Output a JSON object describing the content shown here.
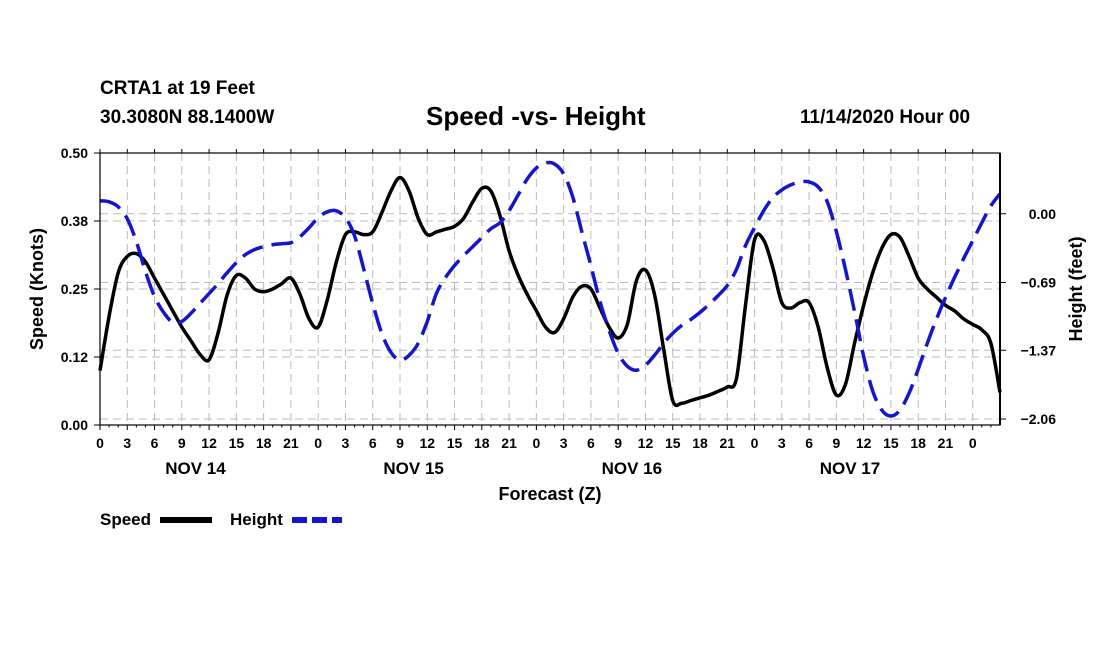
{
  "header": {
    "station": "CRTA1 at 19 Feet",
    "coords": "30.3080N 88.1400W",
    "title": "Speed -vs- Height",
    "datetime": "11/14/2020 Hour 00"
  },
  "legend": {
    "speed_label": "Speed",
    "height_label": "Height"
  },
  "colors": {
    "speed": "#000000",
    "height": "#1515cc",
    "grid": "#bbbbbb"
  },
  "chart_data": {
    "type": "line",
    "title": "Speed -vs- Height",
    "xlabel": "Forecast (Z)",
    "ylabel": "Speed (Knots)",
    "y2label": "Height (feet)",
    "x_hours": [
      0,
      99
    ],
    "x_tick_labels": [
      "0",
      "3",
      "6",
      "9",
      "12",
      "15",
      "18",
      "21",
      "0",
      "3",
      "6",
      "9",
      "12",
      "15",
      "18",
      "21",
      "0",
      "3",
      "6",
      "9",
      "12",
      "15",
      "18",
      "21",
      "0",
      "3",
      "6",
      "9",
      "12",
      "15",
      "18",
      "21",
      "0"
    ],
    "day_labels": [
      {
        "label": "NOV 14",
        "hour": 10.5
      },
      {
        "label": "NOV 15",
        "hour": 34.5
      },
      {
        "label": "NOV 16",
        "hour": 58.5
      },
      {
        "label": "NOV 17",
        "hour": 82.5
      }
    ],
    "y_left": {
      "ticks": [
        "0.00",
        "0.12",
        "0.25",
        "0.38",
        "0.50"
      ],
      "tick_values": [
        0,
        0.125,
        0.25,
        0.375,
        0.5
      ],
      "range": [
        0,
        0.5
      ]
    },
    "y_right": {
      "ticks": [
        "0.00",
        "−0.69",
        "−1.37",
        "−2.06"
      ],
      "tick_values": [
        0,
        -0.69,
        -1.37,
        -2.06
      ],
      "range": [
        -2.12,
        0.61
      ]
    },
    "series": [
      {
        "name": "Speed",
        "axis": "left",
        "style": "solid",
        "points": [
          [
            0,
            0.1
          ],
          [
            1,
            0.2
          ],
          [
            2,
            0.28
          ],
          [
            3,
            0.31
          ],
          [
            4,
            0.315
          ],
          [
            5,
            0.3
          ],
          [
            6,
            0.27
          ],
          [
            7,
            0.24
          ],
          [
            8,
            0.21
          ],
          [
            9,
            0.18
          ],
          [
            10,
            0.155
          ],
          [
            11,
            0.13
          ],
          [
            12,
            0.12
          ],
          [
            13,
            0.17
          ],
          [
            14,
            0.24
          ],
          [
            15,
            0.275
          ],
          [
            16,
            0.27
          ],
          [
            17,
            0.25
          ],
          [
            18,
            0.245
          ],
          [
            19,
            0.25
          ],
          [
            20,
            0.26
          ],
          [
            21,
            0.27
          ],
          [
            22,
            0.24
          ],
          [
            23,
            0.195
          ],
          [
            24,
            0.18
          ],
          [
            25,
            0.23
          ],
          [
            26,
            0.3
          ],
          [
            27,
            0.35
          ],
          [
            28,
            0.355
          ],
          [
            29,
            0.35
          ],
          [
            30,
            0.355
          ],
          [
            31,
            0.39
          ],
          [
            32,
            0.43
          ],
          [
            33,
            0.455
          ],
          [
            34,
            0.43
          ],
          [
            35,
            0.38
          ],
          [
            36,
            0.35
          ],
          [
            37,
            0.355
          ],
          [
            38,
            0.36
          ],
          [
            39,
            0.365
          ],
          [
            40,
            0.38
          ],
          [
            41,
            0.41
          ],
          [
            42,
            0.435
          ],
          [
            43,
            0.43
          ],
          [
            44,
            0.385
          ],
          [
            45,
            0.32
          ],
          [
            46,
            0.275
          ],
          [
            47,
            0.24
          ],
          [
            48,
            0.21
          ],
          [
            49,
            0.18
          ],
          [
            50,
            0.17
          ],
          [
            51,
            0.195
          ],
          [
            52,
            0.235
          ],
          [
            53,
            0.255
          ],
          [
            54,
            0.25
          ],
          [
            55,
            0.215
          ],
          [
            56,
            0.18
          ],
          [
            57,
            0.16
          ],
          [
            58,
            0.185
          ],
          [
            59,
            0.265
          ],
          [
            60,
            0.285
          ],
          [
            61,
            0.24
          ],
          [
            62,
            0.14
          ],
          [
            63,
            0.045
          ],
          [
            64,
            0.04
          ],
          [
            65,
            0.045
          ],
          [
            66,
            0.05
          ],
          [
            67,
            0.055
          ],
          [
            68,
            0.062
          ],
          [
            69,
            0.07
          ],
          [
            70,
            0.085
          ],
          [
            71,
            0.22
          ],
          [
            72,
            0.34
          ],
          [
            73,
            0.34
          ],
          [
            74,
            0.29
          ],
          [
            75,
            0.225
          ],
          [
            76,
            0.215
          ],
          [
            77,
            0.225
          ],
          [
            78,
            0.225
          ],
          [
            79,
            0.18
          ],
          [
            80,
            0.105
          ],
          [
            81,
            0.055
          ],
          [
            82,
            0.075
          ],
          [
            83,
            0.15
          ],
          [
            84,
            0.22
          ],
          [
            85,
            0.28
          ],
          [
            86,
            0.325
          ],
          [
            87,
            0.35
          ],
          [
            88,
            0.345
          ],
          [
            89,
            0.31
          ],
          [
            90,
            0.27
          ],
          [
            91,
            0.25
          ],
          [
            92,
            0.235
          ],
          [
            93,
            0.22
          ],
          [
            94,
            0.21
          ],
          [
            95,
            0.195
          ],
          [
            96,
            0.185
          ],
          [
            97,
            0.175
          ],
          [
            98,
            0.15
          ],
          [
            99,
            0.06
          ]
        ]
      },
      {
        "name": "Height",
        "axis": "right",
        "style": "dashed",
        "points": [
          [
            0,
            0.13
          ],
          [
            1,
            0.12
          ],
          [
            2,
            0.07
          ],
          [
            3,
            -0.05
          ],
          [
            4,
            -0.28
          ],
          [
            5,
            -0.58
          ],
          [
            6,
            -0.83
          ],
          [
            7,
            -0.99
          ],
          [
            8,
            -1.09
          ],
          [
            9,
            -1.08
          ],
          [
            10,
            -1.0
          ],
          [
            11,
            -0.9
          ],
          [
            12,
            -0.8
          ],
          [
            13,
            -0.7
          ],
          [
            14,
            -0.59
          ],
          [
            15,
            -0.49
          ],
          [
            16,
            -0.41
          ],
          [
            17,
            -0.36
          ],
          [
            18,
            -0.33
          ],
          [
            19,
            -0.31
          ],
          [
            20,
            -0.3
          ],
          [
            21,
            -0.29
          ],
          [
            22,
            -0.23
          ],
          [
            23,
            -0.14
          ],
          [
            24,
            -0.04
          ],
          [
            25,
            0.02
          ],
          [
            26,
            0.03
          ],
          [
            27,
            -0.04
          ],
          [
            28,
            -0.22
          ],
          [
            29,
            -0.55
          ],
          [
            30,
            -0.9
          ],
          [
            31,
            -1.2
          ],
          [
            32,
            -1.39
          ],
          [
            33,
            -1.47
          ],
          [
            34,
            -1.42
          ],
          [
            35,
            -1.3
          ],
          [
            36,
            -1.08
          ],
          [
            37,
            -0.8
          ],
          [
            38,
            -0.64
          ],
          [
            39,
            -0.52
          ],
          [
            40,
            -0.42
          ],
          [
            41,
            -0.33
          ],
          [
            42,
            -0.24
          ],
          [
            43,
            -0.15
          ],
          [
            44,
            -0.09
          ],
          [
            45,
            0.03
          ],
          [
            46,
            0.19
          ],
          [
            47,
            0.35
          ],
          [
            48,
            0.46
          ],
          [
            49,
            0.51
          ],
          [
            50,
            0.5
          ],
          [
            51,
            0.4
          ],
          [
            52,
            0.17
          ],
          [
            53,
            -0.18
          ],
          [
            54,
            -0.52
          ],
          [
            55,
            -0.88
          ],
          [
            56,
            -1.17
          ],
          [
            57,
            -1.4
          ],
          [
            58,
            -1.53
          ],
          [
            59,
            -1.57
          ],
          [
            60,
            -1.52
          ],
          [
            61,
            -1.42
          ],
          [
            62,
            -1.3
          ],
          [
            63,
            -1.2
          ],
          [
            64,
            -1.12
          ],
          [
            65,
            -1.06
          ],
          [
            66,
            -0.99
          ],
          [
            67,
            -0.91
          ],
          [
            68,
            -0.82
          ],
          [
            69,
            -0.72
          ],
          [
            70,
            -0.56
          ],
          [
            71,
            -0.32
          ],
          [
            72,
            -0.14
          ],
          [
            73,
            0.03
          ],
          [
            74,
            0.16
          ],
          [
            75,
            0.24
          ],
          [
            76,
            0.29
          ],
          [
            77,
            0.32
          ],
          [
            78,
            0.32
          ],
          [
            79,
            0.27
          ],
          [
            80,
            0.12
          ],
          [
            81,
            -0.18
          ],
          [
            82,
            -0.56
          ],
          [
            83,
            -0.98
          ],
          [
            84,
            -1.43
          ],
          [
            85,
            -1.78
          ],
          [
            86,
            -1.97
          ],
          [
            87,
            -2.03
          ],
          [
            88,
            -1.97
          ],
          [
            89,
            -1.8
          ],
          [
            90,
            -1.56
          ],
          [
            91,
            -1.3
          ],
          [
            92,
            -1.06
          ],
          [
            93,
            -0.84
          ],
          [
            94,
            -0.64
          ],
          [
            95,
            -0.45
          ],
          [
            96,
            -0.27
          ],
          [
            97,
            -0.09
          ],
          [
            98,
            0.08
          ],
          [
            99,
            0.2
          ]
        ]
      }
    ]
  }
}
